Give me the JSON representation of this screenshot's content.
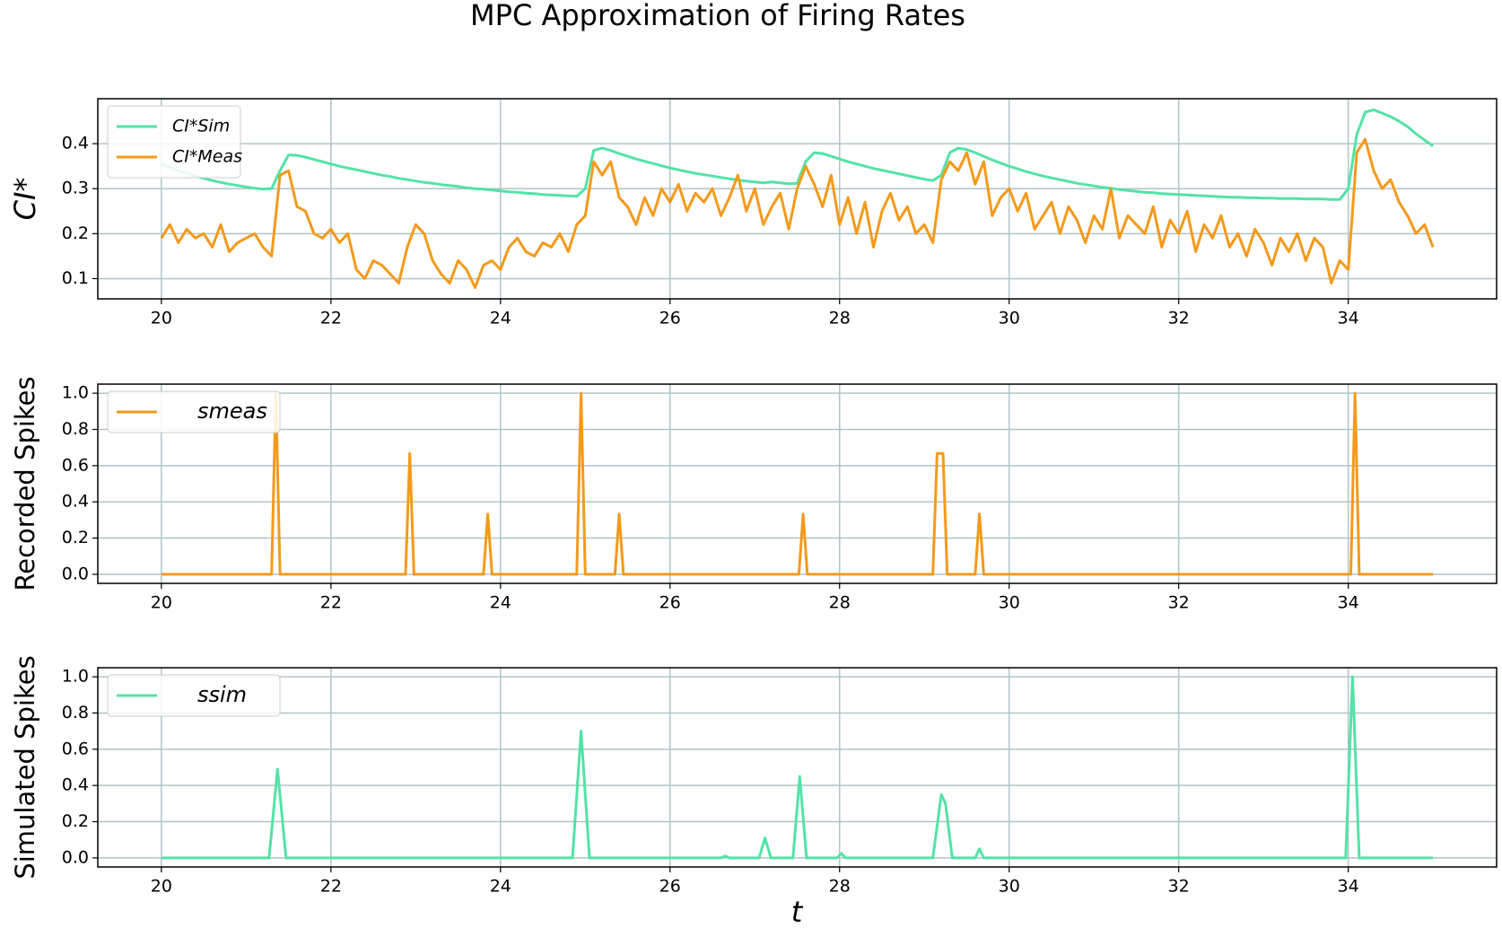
{
  "title": "MPC Approximation of Firing Rates",
  "xlabel": "t",
  "chart_data": [
    {
      "type": "line",
      "ylabel": "CI*",
      "grid": true,
      "legend": "upper left",
      "xlim": [
        19.25,
        35.75
      ],
      "xticks": [
        20,
        22,
        24,
        26,
        28,
        30,
        32,
        34
      ],
      "ylim": [
        0.055,
        0.5
      ],
      "yticks": [
        0.1,
        0.2,
        0.3,
        0.4
      ],
      "x": [
        20.0,
        20.1,
        20.2,
        20.3,
        20.4,
        20.5,
        20.6,
        20.7,
        20.8,
        20.9,
        21.0,
        21.1,
        21.2,
        21.3,
        21.4,
        21.5,
        21.6,
        21.7,
        21.8,
        21.9,
        22.0,
        22.1,
        22.2,
        22.3,
        22.4,
        22.5,
        22.6,
        22.7,
        22.8,
        22.9,
        23.0,
        23.1,
        23.2,
        23.3,
        23.4,
        23.5,
        23.6,
        23.7,
        23.8,
        23.9,
        24.0,
        24.1,
        24.2,
        24.3,
        24.4,
        24.5,
        24.6,
        24.7,
        24.8,
        24.9,
        25.0,
        25.1,
        25.2,
        25.3,
        25.4,
        25.5,
        25.6,
        25.7,
        25.8,
        25.9,
        26.0,
        26.1,
        26.2,
        26.3,
        26.4,
        26.5,
        26.6,
        26.7,
        26.8,
        26.9,
        27.0,
        27.1,
        27.2,
        27.3,
        27.4,
        27.5,
        27.6,
        27.7,
        27.8,
        27.9,
        28.0,
        28.1,
        28.2,
        28.3,
        28.4,
        28.5,
        28.6,
        28.7,
        28.8,
        28.9,
        29.0,
        29.1,
        29.2,
        29.3,
        29.4,
        29.5,
        29.6,
        29.7,
        29.8,
        29.9,
        30.0,
        30.1,
        30.2,
        30.3,
        30.4,
        30.5,
        30.6,
        30.7,
        30.8,
        30.9,
        31.0,
        31.1,
        31.2,
        31.3,
        31.4,
        31.5,
        31.6,
        31.7,
        31.8,
        31.9,
        32.0,
        32.1,
        32.2,
        32.3,
        32.4,
        32.5,
        32.6,
        32.7,
        32.8,
        32.9,
        33.0,
        33.1,
        33.2,
        33.3,
        33.4,
        33.5,
        33.6,
        33.7,
        33.8,
        33.9,
        34.0,
        34.1,
        34.2,
        34.3,
        34.4,
        34.5,
        34.6,
        34.7,
        34.8,
        34.9,
        35.0
      ],
      "series": [
        {
          "name": "CI*Sim",
          "color": "#52e3a6",
          "values": [
            0.355,
            0.347,
            0.34,
            0.334,
            0.328,
            0.323,
            0.318,
            0.314,
            0.31,
            0.307,
            0.304,
            0.301,
            0.299,
            0.3,
            0.34,
            0.375,
            0.374,
            0.37,
            0.365,
            0.36,
            0.355,
            0.35,
            0.346,
            0.342,
            0.338,
            0.334,
            0.33,
            0.327,
            0.323,
            0.32,
            0.317,
            0.314,
            0.312,
            0.309,
            0.307,
            0.305,
            0.302,
            0.3,
            0.299,
            0.297,
            0.295,
            0.293,
            0.292,
            0.29,
            0.289,
            0.287,
            0.286,
            0.285,
            0.284,
            0.283,
            0.3,
            0.385,
            0.39,
            0.385,
            0.378,
            0.372,
            0.366,
            0.361,
            0.356,
            0.351,
            0.346,
            0.342,
            0.338,
            0.334,
            0.331,
            0.328,
            0.325,
            0.322,
            0.319,
            0.317,
            0.315,
            0.313,
            0.315,
            0.313,
            0.311,
            0.312,
            0.36,
            0.38,
            0.378,
            0.372,
            0.366,
            0.36,
            0.355,
            0.35,
            0.345,
            0.341,
            0.337,
            0.333,
            0.329,
            0.325,
            0.321,
            0.318,
            0.33,
            0.38,
            0.39,
            0.387,
            0.38,
            0.372,
            0.364,
            0.357,
            0.35,
            0.344,
            0.338,
            0.333,
            0.328,
            0.324,
            0.32,
            0.316,
            0.312,
            0.309,
            0.306,
            0.303,
            0.301,
            0.298,
            0.296,
            0.294,
            0.292,
            0.291,
            0.289,
            0.288,
            0.287,
            0.286,
            0.285,
            0.284,
            0.283,
            0.282,
            0.281,
            0.281,
            0.28,
            0.28,
            0.279,
            0.279,
            0.278,
            0.278,
            0.278,
            0.277,
            0.277,
            0.277,
            0.276,
            0.276,
            0.3,
            0.42,
            0.47,
            0.475,
            0.468,
            0.46,
            0.45,
            0.438,
            0.422,
            0.408,
            0.395
          ]
        },
        {
          "name": "CI*Meas",
          "color": "#f39a1b",
          "values": [
            0.19,
            0.22,
            0.18,
            0.21,
            0.19,
            0.2,
            0.17,
            0.22,
            0.16,
            0.18,
            0.19,
            0.2,
            0.17,
            0.15,
            0.33,
            0.34,
            0.26,
            0.25,
            0.2,
            0.19,
            0.21,
            0.18,
            0.2,
            0.12,
            0.1,
            0.14,
            0.13,
            0.11,
            0.09,
            0.17,
            0.22,
            0.2,
            0.14,
            0.11,
            0.09,
            0.14,
            0.12,
            0.08,
            0.13,
            0.14,
            0.12,
            0.17,
            0.19,
            0.16,
            0.15,
            0.18,
            0.17,
            0.2,
            0.16,
            0.22,
            0.24,
            0.36,
            0.33,
            0.36,
            0.28,
            0.26,
            0.22,
            0.28,
            0.24,
            0.3,
            0.27,
            0.31,
            0.25,
            0.29,
            0.27,
            0.3,
            0.24,
            0.28,
            0.33,
            0.25,
            0.3,
            0.22,
            0.26,
            0.29,
            0.21,
            0.3,
            0.35,
            0.31,
            0.26,
            0.33,
            0.22,
            0.28,
            0.2,
            0.27,
            0.17,
            0.25,
            0.29,
            0.23,
            0.26,
            0.2,
            0.22,
            0.18,
            0.32,
            0.36,
            0.34,
            0.38,
            0.31,
            0.36,
            0.24,
            0.28,
            0.3,
            0.25,
            0.29,
            0.21,
            0.24,
            0.27,
            0.2,
            0.26,
            0.23,
            0.18,
            0.24,
            0.21,
            0.3,
            0.19,
            0.24,
            0.22,
            0.2,
            0.26,
            0.17,
            0.23,
            0.2,
            0.25,
            0.16,
            0.22,
            0.19,
            0.24,
            0.17,
            0.2,
            0.15,
            0.21,
            0.18,
            0.13,
            0.19,
            0.16,
            0.2,
            0.14,
            0.19,
            0.17,
            0.09,
            0.14,
            0.12,
            0.38,
            0.41,
            0.34,
            0.3,
            0.32,
            0.27,
            0.24,
            0.2,
            0.22,
            0.17
          ]
        }
      ]
    },
    {
      "type": "line",
      "ylabel": "Recorded Spikes",
      "grid": true,
      "legend": "upper left",
      "xlim": [
        19.25,
        35.75
      ],
      "xticks": [
        20,
        22,
        24,
        26,
        28,
        30,
        32,
        34
      ],
      "ylim": [
        -0.05,
        1.05
      ],
      "yticks": [
        {
          "value": 0,
          "label": "0.0"
        },
        0.2,
        0.4,
        0.6,
        0.8,
        {
          "value": 1,
          "label": "1.0"
        }
      ],
      "x": [
        20,
        21.3,
        21.35,
        21.4,
        22.88,
        22.93,
        22.98,
        23.8,
        23.85,
        23.9,
        24.9,
        24.95,
        25.0,
        25.35,
        25.4,
        25.45,
        27.52,
        27.57,
        27.62,
        29.1,
        29.15,
        29.22,
        29.27,
        29.6,
        29.65,
        29.7,
        34.03,
        34.08,
        34.13,
        35
      ],
      "series": [
        {
          "name": "smeas",
          "color": "#f39a1b",
          "values": [
            0,
            0,
            1,
            0,
            0,
            0.667,
            0,
            0,
            0.333,
            0,
            0,
            1,
            0,
            0,
            0.333,
            0,
            0,
            0.333,
            0,
            0,
            0.667,
            0.667,
            0,
            0,
            0.333,
            0,
            0,
            1,
            0,
            0
          ]
        }
      ]
    },
    {
      "type": "line",
      "ylabel": "Simulated Spikes",
      "grid": true,
      "legend": "upper left",
      "xlim": [
        19.25,
        35.75
      ],
      "xticks": [
        20,
        22,
        24,
        26,
        28,
        30,
        32,
        34
      ],
      "ylim": [
        -0.05,
        1.05
      ],
      "yticks": [
        {
          "value": 0,
          "label": "0.0"
        },
        0.2,
        0.4,
        0.6,
        0.8,
        {
          "value": 1,
          "label": "1.0"
        }
      ],
      "x": [
        20,
        21.27,
        21.37,
        21.47,
        24.85,
        24.95,
        25.05,
        26.6,
        26.65,
        26.7,
        27.05,
        27.12,
        27.19,
        27.45,
        27.53,
        27.61,
        27.97,
        28.02,
        28.07,
        29.1,
        29.2,
        29.25,
        29.33,
        29.6,
        29.65,
        29.7,
        33.97,
        34.05,
        34.13,
        35
      ],
      "series": [
        {
          "name": "ssim",
          "color": "#52e3a6",
          "values": [
            0,
            0,
            0.49,
            0,
            0,
            0.7,
            0,
            0,
            0.01,
            0,
            0,
            0.11,
            0,
            0,
            0.45,
            0,
            0,
            0.025,
            0,
            0,
            0.35,
            0.3,
            0,
            0,
            0.05,
            0,
            0,
            1,
            0,
            0
          ]
        }
      ]
    }
  ]
}
